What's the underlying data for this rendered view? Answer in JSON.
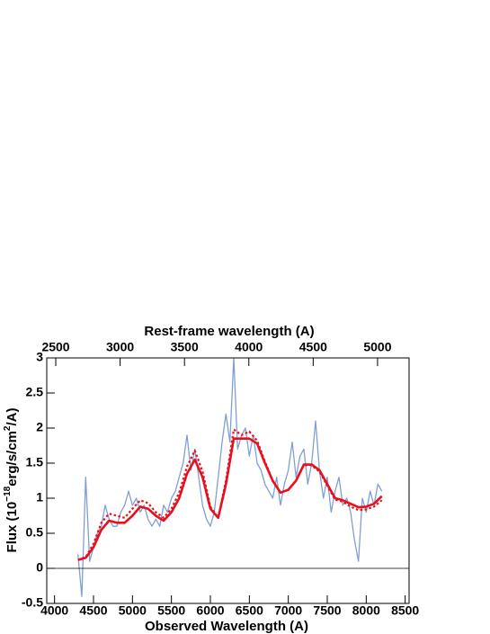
{
  "chart_data": {
    "type": "line",
    "xlabel": "Observed Wavelength (A)",
    "x2label": "Rest-frame wavelength (A)",
    "ylabel": [
      "Flux (10",
      "−18",
      "erg/s/cm",
      "2",
      "/A)"
    ],
    "xlim": [
      3900,
      8550
    ],
    "xticks": [
      4000,
      4500,
      5000,
      5500,
      6000,
      6500,
      7000,
      7500,
      8000,
      8500
    ],
    "x2lim": [
      2430,
      5245
    ],
    "x2ticks": [
      2500,
      3000,
      3500,
      4000,
      4500,
      5000
    ],
    "ylim": [
      -0.5,
      3
    ],
    "yticks": [
      -0.5,
      0,
      0.5,
      1,
      1.5,
      2,
      2.5,
      3
    ],
    "hline": 0,
    "series": [
      {
        "color": "#7f9fd6",
        "style": "solid",
        "width": 1.3,
        "x": [
          4300,
          4350,
          4400,
          4450,
          4500,
          4550,
          4600,
          4650,
          4700,
          4750,
          4800,
          4850,
          4900,
          4950,
          5000,
          5050,
          5100,
          5150,
          5200,
          5250,
          5300,
          5350,
          5400,
          5450,
          5500,
          5550,
          5600,
          5650,
          5700,
          5750,
          5800,
          5850,
          5900,
          5950,
          6000,
          6050,
          6100,
          6150,
          6200,
          6250,
          6300,
          6350,
          6400,
          6450,
          6500,
          6550,
          6600,
          6650,
          6700,
          6750,
          6800,
          6850,
          6900,
          6950,
          7000,
          7050,
          7100,
          7150,
          7200,
          7250,
          7300,
          7350,
          7400,
          7450,
          7500,
          7550,
          7600,
          7650,
          7700,
          7750,
          7800,
          7850,
          7900,
          7950,
          8000,
          8050,
          8100,
          8150,
          8200
        ],
        "values": [
          0.2,
          -0.4,
          1.3,
          0.1,
          0.3,
          0.5,
          0.6,
          0.9,
          0.7,
          0.6,
          0.6,
          0.8,
          0.9,
          1.1,
          0.9,
          1.0,
          0.8,
          0.9,
          0.7,
          0.6,
          0.7,
          0.6,
          0.9,
          0.8,
          1.0,
          1.1,
          1.3,
          1.5,
          1.9,
          1.4,
          1.7,
          1.3,
          0.9,
          0.7,
          0.6,
          0.8,
          1.3,
          1.8,
          2.2,
          1.8,
          3.0,
          1.7,
          1.9,
          2.0,
          1.6,
          1.9,
          1.5,
          1.4,
          1.2,
          1.1,
          1.0,
          1.3,
          0.9,
          1.2,
          1.4,
          1.8,
          1.3,
          1.6,
          1.7,
          1.2,
          1.5,
          2.1,
          1.4,
          1.0,
          1.3,
          0.8,
          1.1,
          1.3,
          0.9,
          1.0,
          0.8,
          0.4,
          0.1,
          1.0,
          0.8,
          1.1,
          0.9,
          1.2,
          1.1
        ]
      },
      {
        "color": "#e8101c",
        "style": "dotted",
        "width": 2.2,
        "x": [
          4300,
          4400,
          4500,
          4600,
          4700,
          4800,
          4900,
          5000,
          5100,
          5200,
          5300,
          5400,
          5500,
          5600,
          5700,
          5800,
          5900,
          6000,
          6100,
          6200,
          6300,
          6400,
          6500,
          6600,
          6700,
          6800,
          6900,
          7000,
          7100,
          7200,
          7300,
          7400,
          7500,
          7600,
          7700,
          7800,
          7900,
          8000,
          8100,
          8200
        ],
        "values": [
          0.12,
          0.16,
          0.35,
          0.65,
          0.78,
          0.75,
          0.72,
          0.85,
          0.97,
          0.93,
          0.8,
          0.72,
          0.85,
          1.08,
          1.45,
          1.68,
          1.38,
          0.88,
          0.72,
          1.25,
          1.98,
          1.9,
          1.95,
          1.82,
          1.52,
          1.25,
          1.08,
          1.12,
          1.25,
          1.47,
          1.47,
          1.38,
          1.18,
          0.98,
          0.95,
          0.88,
          0.83,
          0.84,
          0.88,
          0.97
        ]
      },
      {
        "color": "#e8101c",
        "style": "solid",
        "width": 2.6,
        "x": [
          4300,
          4400,
          4500,
          4600,
          4700,
          4800,
          4900,
          5000,
          5100,
          5200,
          5300,
          5400,
          5500,
          5600,
          5700,
          5800,
          5900,
          6000,
          6100,
          6200,
          6300,
          6400,
          6500,
          6600,
          6700,
          6800,
          6900,
          7000,
          7100,
          7200,
          7300,
          7400,
          7500,
          7600,
          7700,
          7800,
          7900,
          8000,
          8100,
          8200
        ],
        "values": [
          0.12,
          0.15,
          0.3,
          0.55,
          0.68,
          0.65,
          0.65,
          0.75,
          0.88,
          0.85,
          0.75,
          0.68,
          0.8,
          1.0,
          1.35,
          1.55,
          1.3,
          0.85,
          0.72,
          1.2,
          1.85,
          1.85,
          1.85,
          1.78,
          1.5,
          1.25,
          1.08,
          1.12,
          1.25,
          1.48,
          1.48,
          1.4,
          1.2,
          1.0,
          0.97,
          0.92,
          0.87,
          0.88,
          0.92,
          1.03
        ]
      }
    ]
  }
}
